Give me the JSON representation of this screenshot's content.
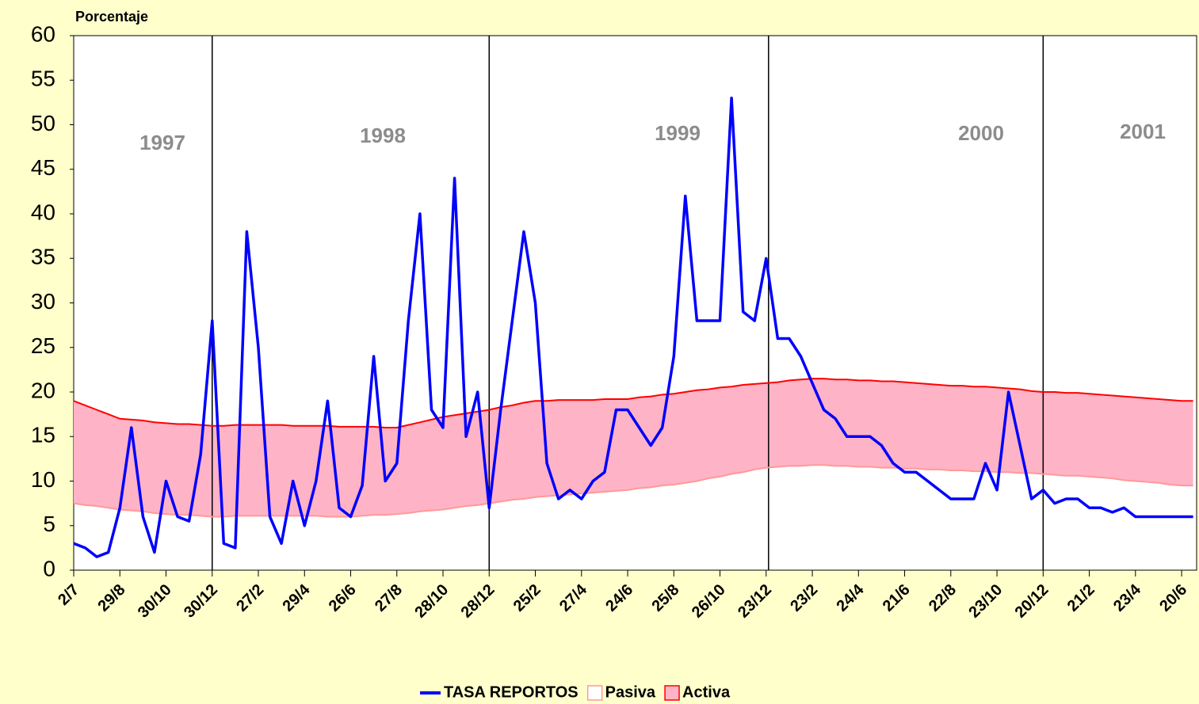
{
  "chart_data": {
    "type": "line",
    "y_label": "Porcentaje",
    "categories": [
      "2/7",
      null,
      null,
      null,
      "29/8",
      null,
      null,
      null,
      "30/10",
      null,
      null,
      null,
      "30/12",
      null,
      null,
      null,
      "27/2",
      null,
      null,
      null,
      "29/4",
      null,
      null,
      null,
      "26/6",
      null,
      null,
      null,
      "27/8",
      null,
      null,
      null,
      "28/10",
      null,
      null,
      null,
      "28/12",
      null,
      null,
      null,
      "25/2",
      null,
      null,
      null,
      "27/4",
      null,
      null,
      null,
      "24/6",
      null,
      null,
      null,
      "25/8",
      null,
      null,
      null,
      "26/10",
      null,
      null,
      null,
      "23/12",
      null,
      null,
      null,
      "23/2",
      null,
      null,
      null,
      "24/4",
      null,
      null,
      null,
      "21/6",
      null,
      null,
      null,
      "22/8",
      null,
      null,
      null,
      "23/10",
      null,
      null,
      null,
      "20/12",
      null,
      null,
      null,
      "21/2",
      null,
      null,
      null,
      "23/4",
      null,
      null,
      null,
      "20/6",
      null
    ],
    "annotations": [
      "1997",
      "1998",
      "1999",
      "2000",
      "2001"
    ],
    "series": [
      {
        "name": "TASA REPORTOS",
        "color": "#0000ff",
        "values": [
          3,
          2.5,
          1.5,
          2,
          7,
          16,
          6,
          2,
          10,
          6,
          5.5,
          13,
          28,
          3,
          2.5,
          38,
          25,
          6,
          3,
          10,
          5,
          10,
          19,
          7,
          6,
          9.5,
          24,
          10,
          12,
          28,
          40,
          18,
          16,
          44,
          15,
          20,
          7,
          18,
          28,
          38,
          30,
          12,
          8,
          9,
          8,
          10,
          11,
          18,
          18,
          16,
          14,
          16,
          24,
          42,
          28,
          28,
          28,
          53,
          29,
          28,
          35,
          26,
          26,
          24,
          21,
          18,
          17,
          15,
          15,
          15,
          14,
          12,
          11,
          11,
          10,
          9,
          8,
          8,
          8,
          12,
          9,
          20,
          14,
          8,
          9,
          7.5,
          8,
          8,
          7,
          7,
          6.5,
          7,
          6,
          6,
          6,
          6,
          6,
          6
        ]
      },
      {
        "name": "Pasiva",
        "color": "#ff9999",
        "values": [
          7.5,
          7.3,
          7.2,
          7,
          6.8,
          6.7,
          6.6,
          6.4,
          6.3,
          6.2,
          6.2,
          6.1,
          6,
          6,
          6.1,
          6.1,
          6.1,
          6.1,
          6.1,
          6.1,
          6.1,
          6.1,
          6,
          6,
          6,
          6.1,
          6.2,
          6.2,
          6.3,
          6.4,
          6.6,
          6.7,
          6.8,
          7,
          7.2,
          7.3,
          7.5,
          7.7,
          7.9,
          8,
          8.2,
          8.3,
          8.4,
          8.5,
          8.6,
          8.7,
          8.8,
          8.9,
          9,
          9.2,
          9.3,
          9.5,
          9.6,
          9.8,
          10,
          10.3,
          10.5,
          10.8,
          11,
          11.3,
          11.5,
          11.6,
          11.7,
          11.7,
          11.8,
          11.8,
          11.7,
          11.7,
          11.6,
          11.6,
          11.5,
          11.5,
          11.4,
          11.4,
          11.3,
          11.3,
          11.2,
          11.2,
          11.1,
          11.1,
          11,
          11,
          10.9,
          10.9,
          10.8,
          10.7,
          10.6,
          10.6,
          10.5,
          10.4,
          10.3,
          10.1,
          10,
          9.9,
          9.8,
          9.6,
          9.5,
          9.5
        ]
      },
      {
        "name": "Activa",
        "color": "#ff0000",
        "fill_color": "#ffb3c6",
        "values": [
          19,
          18.5,
          18,
          17.5,
          17,
          16.9,
          16.8,
          16.6,
          16.5,
          16.4,
          16.4,
          16.3,
          16.2,
          16.2,
          16.3,
          16.3,
          16.3,
          16.3,
          16.3,
          16.2,
          16.2,
          16.2,
          16.2,
          16.1,
          16.1,
          16.1,
          16.1,
          16,
          16,
          16.3,
          16.6,
          16.9,
          17.2,
          17.4,
          17.6,
          17.8,
          18,
          18.3,
          18.5,
          18.8,
          19,
          19,
          19.1,
          19.1,
          19.1,
          19.1,
          19.2,
          19.2,
          19.2,
          19.4,
          19.5,
          19.7,
          19.8,
          20,
          20.2,
          20.3,
          20.5,
          20.6,
          20.8,
          20.9,
          21,
          21.1,
          21.3,
          21.4,
          21.5,
          21.5,
          21.4,
          21.4,
          21.3,
          21.3,
          21.2,
          21.2,
          21.1,
          21,
          20.9,
          20.8,
          20.7,
          20.7,
          20.6,
          20.6,
          20.5,
          20.4,
          20.3,
          20.1,
          20,
          20,
          19.9,
          19.9,
          19.8,
          19.7,
          19.6,
          19.5,
          19.4,
          19.3,
          19.2,
          19.1,
          19,
          19
        ]
      }
    ],
    "ylim": [
      0,
      60
    ],
    "yticks": [
      0,
      5,
      10,
      15,
      20,
      25,
      30,
      35,
      40,
      45,
      50,
      55,
      60
    ]
  }
}
